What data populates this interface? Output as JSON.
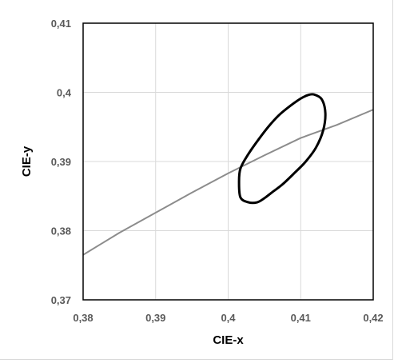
{
  "chart_data": {
    "type": "line",
    "title": "",
    "xlabel": "CIE-x",
    "ylabel": "CIE-y",
    "xlim": [
      0.38,
      0.42
    ],
    "ylim": [
      0.37,
      0.41
    ],
    "x_ticks": [
      "0,38",
      "0,39",
      "0,4",
      "0,41",
      "0,42"
    ],
    "y_ticks": [
      "0,37",
      "0,38",
      "0,39",
      "0,4",
      "0,41"
    ],
    "grid": true,
    "legend": "none",
    "series": [
      {
        "color": "#8c8c8c",
        "x": [
          0.38,
          0.385,
          0.39,
          0.395,
          0.4,
          0.405,
          0.41,
          0.415,
          0.42
        ],
        "y": [
          0.3765,
          0.3797,
          0.3826,
          0.3855,
          0.3883,
          0.3909,
          0.3934,
          0.3953,
          0.3975
        ]
      },
      {
        "color": "#000000",
        "closed": true,
        "x": [
          0.4118,
          0.4129,
          0.4134,
          0.4131,
          0.4121,
          0.4107,
          0.4092,
          0.4075,
          0.406,
          0.405,
          0.404,
          0.4028,
          0.4017,
          0.4015,
          0.4017,
          0.4028,
          0.4042,
          0.4056,
          0.407,
          0.4085,
          0.41,
          0.411
        ],
        "y": [
          0.3997,
          0.399,
          0.397,
          0.3945,
          0.392,
          0.39,
          0.3884,
          0.3867,
          0.3855,
          0.3847,
          0.3841,
          0.3841,
          0.3848,
          0.387,
          0.389,
          0.3911,
          0.3932,
          0.3951,
          0.3967,
          0.398,
          0.3991,
          0.3996
        ]
      }
    ]
  }
}
